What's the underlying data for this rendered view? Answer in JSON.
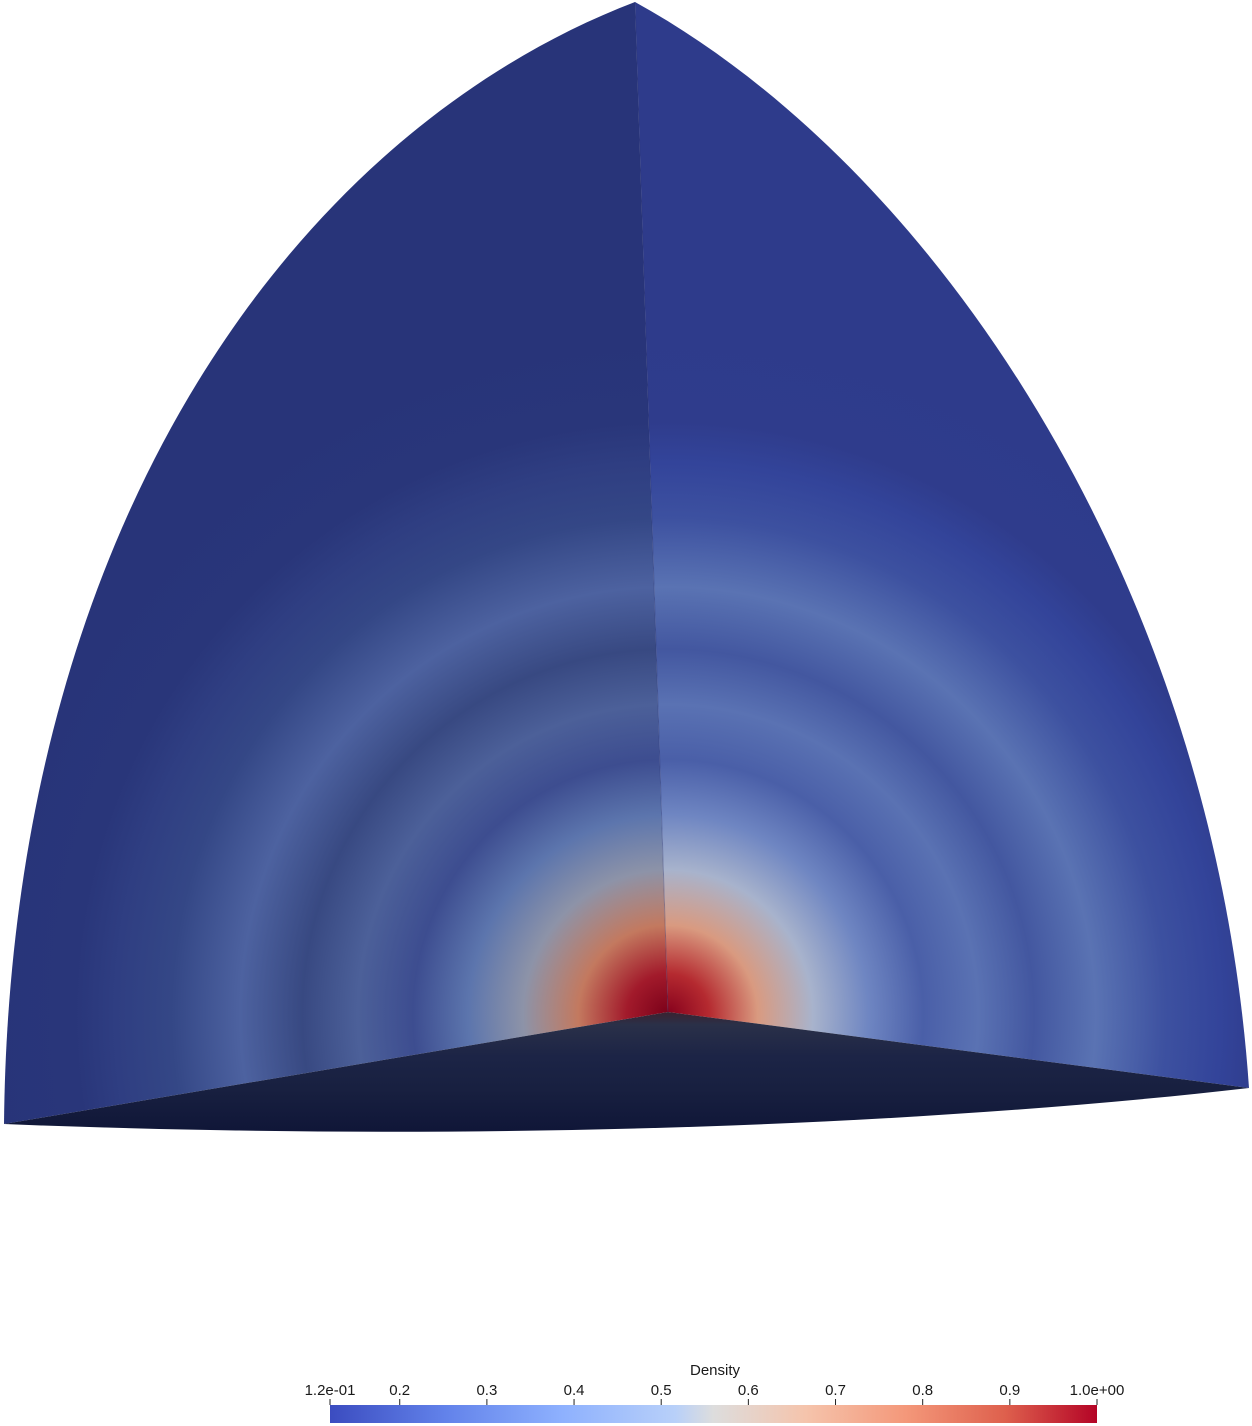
{
  "render": {
    "scalar_field": "Density",
    "colormap": "Cool to Warm",
    "colors": {
      "background": "#ffffff",
      "low": "#3b4cc0",
      "mid": "#dddddd",
      "high": "#b40426",
      "dark_core": "#7a0019",
      "shaded_floor": "#121838"
    }
  },
  "colorbar": {
    "title": "Density",
    "min": 0.12,
    "max": 1.0,
    "min_label": "1.2e-01",
    "max_label": "1.0e+00",
    "ticks": [
      {
        "value": 0.2,
        "label": "0.2"
      },
      {
        "value": 0.3,
        "label": "0.3"
      },
      {
        "value": 0.4,
        "label": "0.4"
      },
      {
        "value": 0.5,
        "label": "0.5"
      },
      {
        "value": 0.6,
        "label": "0.6"
      },
      {
        "value": 0.7,
        "label": "0.7"
      },
      {
        "value": 0.8,
        "label": "0.8"
      },
      {
        "value": 0.9,
        "label": "0.9"
      }
    ]
  }
}
